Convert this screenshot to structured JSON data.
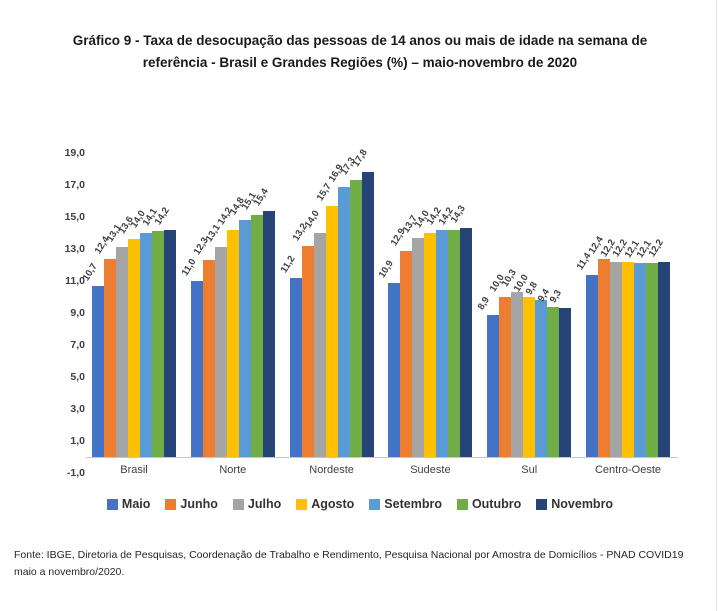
{
  "title": "Gráfico 9 - Taxa de desocupação das pessoas de 14 anos ou mais de idade na semana de referência - Brasil e Grandes Regiões (%) – maio-novembro de 2020",
  "footer": "Fonte: IBGE, Diretoria de Pesquisas, Coordenação de Trabalho e Rendimento, Pesquisa Nacional por Amostra de Domicílios - PNAD COVID19 maio a novembro/2020.",
  "chart_data": {
    "type": "bar",
    "title": "Gráfico 9 - Taxa de desocupação das pessoas de 14 anos ou mais de idade na semana de referência - Brasil e Grandes Regiões (%) – maio-novembro de 2020",
    "categories": [
      "Brasil",
      "Norte",
      "Nordeste",
      "Sudeste",
      "Sul",
      "Centro-Oeste"
    ],
    "series": [
      {
        "name": "Maio",
        "color": "#4472C4",
        "values": [
          10.7,
          11.0,
          11.2,
          10.9,
          8.9,
          11.4
        ]
      },
      {
        "name": "Junho",
        "color": "#ED7D31",
        "values": [
          12.4,
          12.3,
          13.2,
          12.9,
          10.0,
          12.4
        ]
      },
      {
        "name": "Julho",
        "color": "#A5A5A5",
        "values": [
          13.1,
          13.1,
          14.0,
          13.7,
          10.3,
          12.2
        ]
      },
      {
        "name": "Agosto",
        "color": "#FFC000",
        "values": [
          13.6,
          14.2,
          15.7,
          14.0,
          10.0,
          12.2
        ]
      },
      {
        "name": "Setembro",
        "color": "#5B9BD5",
        "values": [
          14.0,
          14.8,
          16.9,
          14.2,
          9.8,
          12.1
        ]
      },
      {
        "name": "Outubro",
        "color": "#70AD47",
        "values": [
          14.1,
          15.1,
          17.3,
          14.2,
          9.4,
          12.1
        ]
      },
      {
        "name": "Novembro",
        "color": "#264478",
        "values": [
          14.2,
          15.4,
          17.8,
          14.3,
          9.3,
          12.2
        ]
      }
    ],
    "xlabel": "",
    "ylabel": "",
    "ylim": [
      -1.0,
      19.0
    ],
    "grid": false,
    "legend_position": "bottom",
    "decimal_separator": ",",
    "data_labels_rotated": true,
    "y_ticks": [
      {
        "value": 19,
        "label": "19,0"
      },
      {
        "value": 17,
        "label": "17,0"
      },
      {
        "value": 15,
        "label": "15,0"
      },
      {
        "value": 13,
        "label": "13,0"
      },
      {
        "value": 11,
        "label": "11,0"
      },
      {
        "value": 9,
        "label": "9,0"
      },
      {
        "value": 7,
        "label": "7,0"
      },
      {
        "value": 5,
        "label": "5,0"
      },
      {
        "value": 3,
        "label": "3,0"
      },
      {
        "value": 1,
        "label": "1,0"
      },
      {
        "value": -1,
        "label": "-1,0"
      }
    ]
  }
}
